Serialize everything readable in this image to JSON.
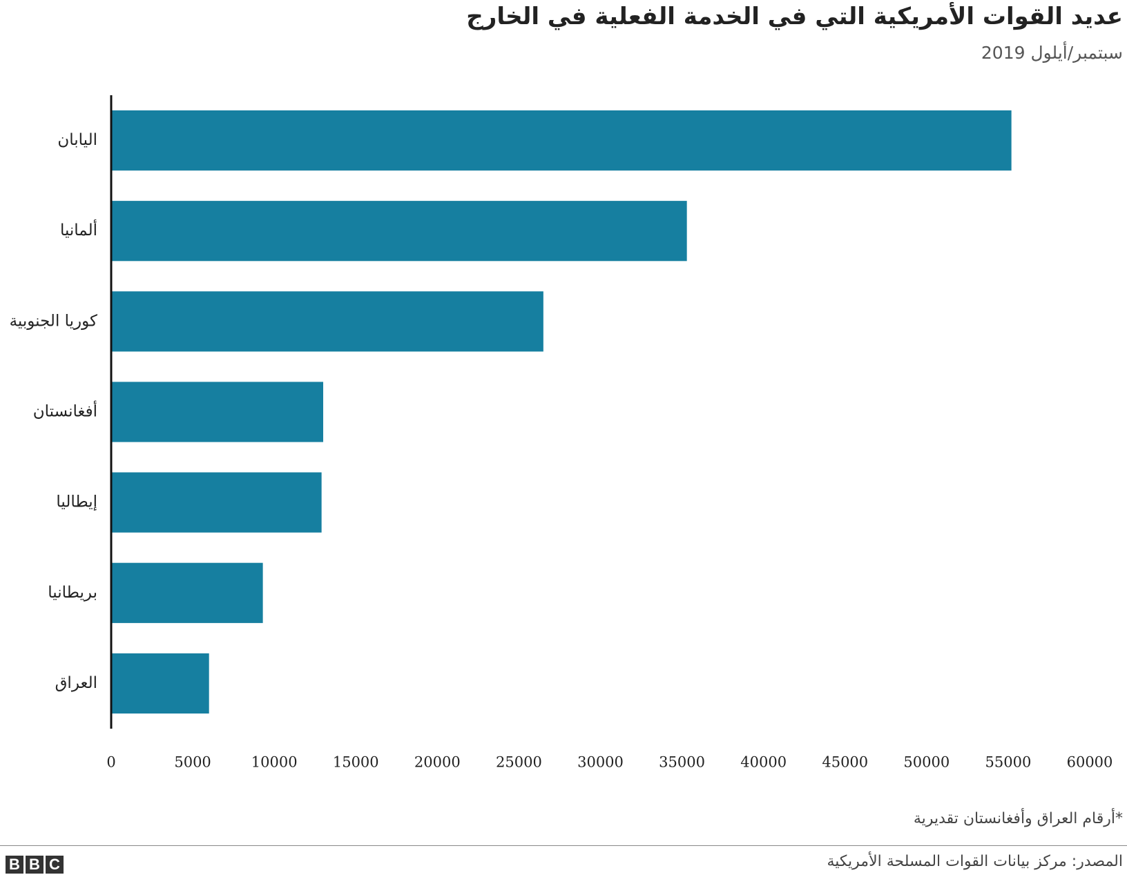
{
  "chart_data": {
    "type": "bar",
    "orientation": "horizontal",
    "title": "عديد القوات الأمريكية التي في الخدمة الفعلية في الخارج",
    "subtitle": "سبتمبر/أيلول 2019",
    "categories": [
      "اليابان",
      "ألمانيا",
      "كوريا الجنوبية",
      "أفغانستان",
      "إيطاليا",
      "بريطانيا",
      "العراق"
    ],
    "values": [
      55200,
      35300,
      26500,
      13000,
      12900,
      9300,
      6000
    ],
    "color": "#167fa0",
    "xlim": [
      0,
      60000
    ],
    "xticks": [
      0,
      5000,
      10000,
      15000,
      20000,
      25000,
      30000,
      35000,
      40000,
      45000,
      50000,
      55000,
      60000
    ],
    "footnote": "*أرقام العراق وأفغانستان تقديرية",
    "source": "المصدر: مركز بيانات القوات المسلحة الأمريكية",
    "logo": [
      "B",
      "B",
      "C"
    ]
  }
}
